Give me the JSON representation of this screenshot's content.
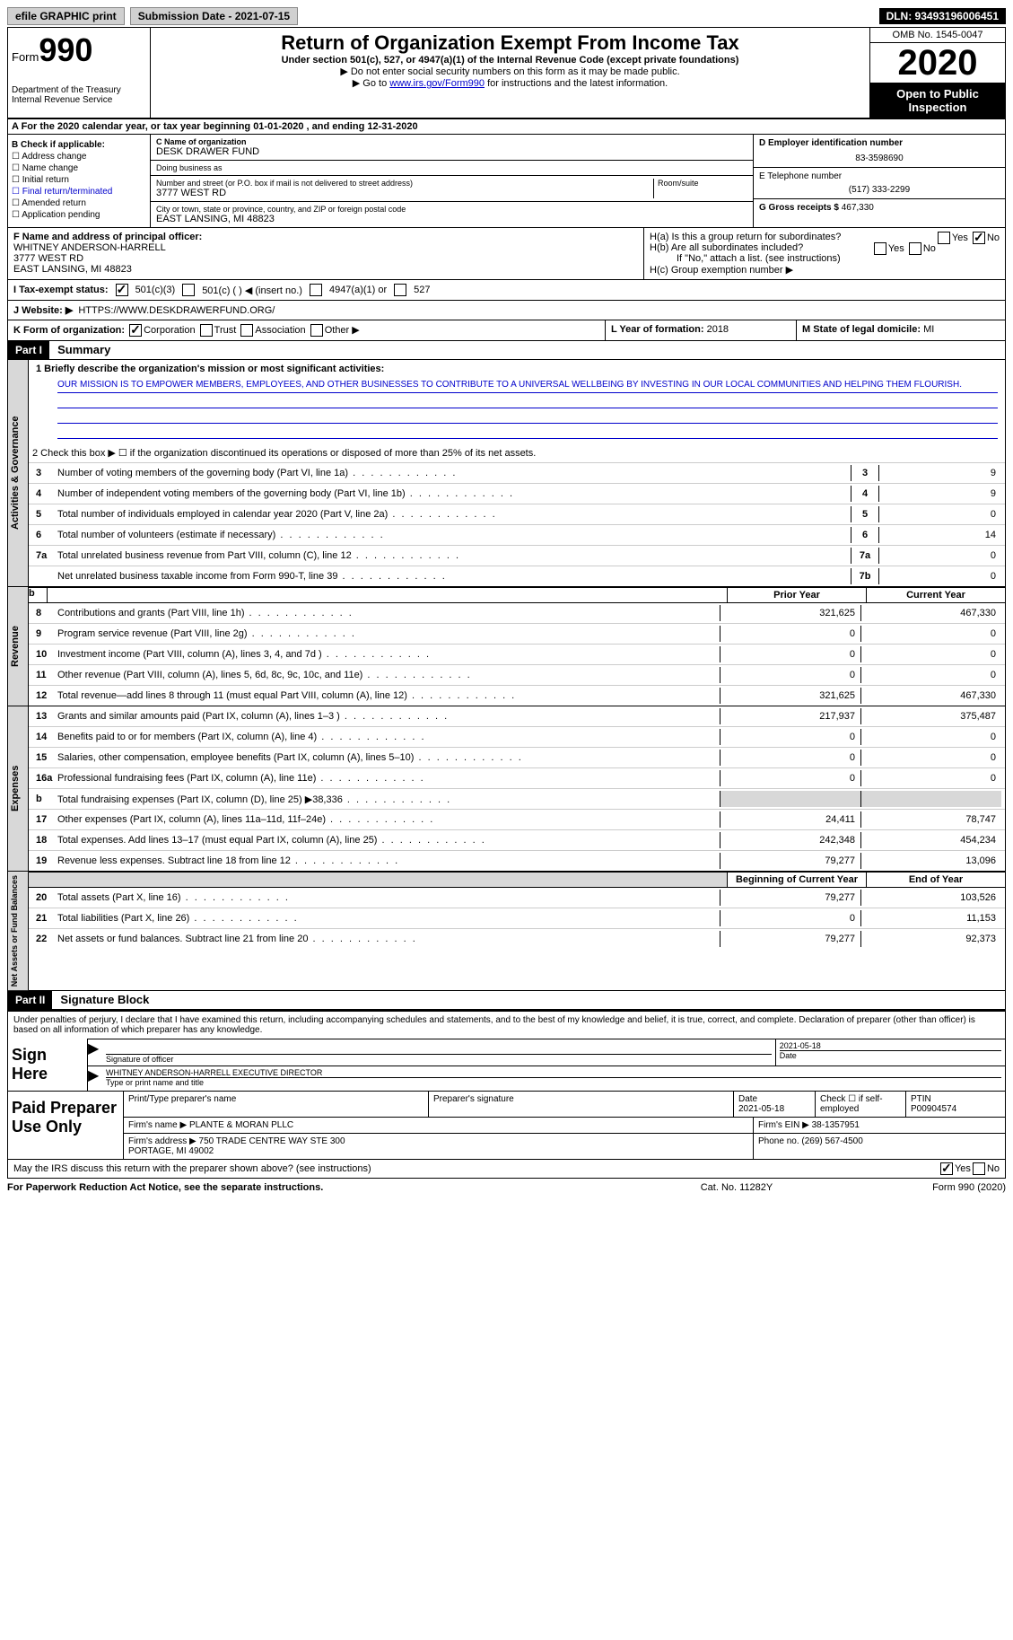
{
  "topbar": {
    "efile": "efile GRAPHIC print",
    "submission": "Submission Date - 2021-07-15",
    "dln": "DLN: 93493196006451"
  },
  "header": {
    "form_prefix": "Form",
    "form_number": "990",
    "dept": "Department of the Treasury\nInternal Revenue Service",
    "title": "Return of Organization Exempt From Income Tax",
    "subtitle": "Under section 501(c), 527, or 4947(a)(1) of the Internal Revenue Code (except private foundations)",
    "note1": "▶ Do not enter social security numbers on this form as it may be made public.",
    "note2_pre": "▶ Go to ",
    "note2_link": "www.irs.gov/Form990",
    "note2_post": " for instructions and the latest information.",
    "omb": "OMB No. 1545-0047",
    "year": "2020",
    "inspect": "Open to Public Inspection"
  },
  "calyear": "A For the 2020 calendar year, or tax year beginning 01-01-2020     , and ending 12-31-2020",
  "boxB": {
    "label": "B Check if applicable:",
    "items": [
      "Address change",
      "Name change",
      "Initial return",
      "Final return/terminated",
      "Amended return",
      "Application pending"
    ]
  },
  "boxC": {
    "name_label": "C Name of organization",
    "name": "DESK DRAWER FUND",
    "dba_label": "Doing business as",
    "dba": "",
    "addr_label": "Number and street (or P.O. box if mail is not delivered to street address)",
    "room_label": "Room/suite",
    "addr": "3777 WEST RD",
    "city_label": "City or town, state or province, country, and ZIP or foreign postal code",
    "city": "EAST LANSING, MI  48823"
  },
  "boxD": {
    "label": "D Employer identification number",
    "ein": "83-3598690"
  },
  "boxE": {
    "label": "E Telephone number",
    "phone": "(517) 333-2299"
  },
  "boxG": {
    "label": "G Gross receipts $",
    "val": "467,330"
  },
  "boxF": {
    "label": "F Name and address of principal officer:",
    "name": "WHITNEY ANDERSON-HARRELL",
    "addr": "3777 WEST RD\nEAST LANSING, MI  48823"
  },
  "boxH": {
    "a": "H(a)  Is this a group return for subordinates?",
    "b": "H(b)  Are all subordinates included?",
    "bnote": "If \"No,\" attach a list. (see instructions)",
    "c": "H(c)  Group exemption number ▶"
  },
  "boxI": {
    "label": "I     Tax-exempt status:",
    "opts": [
      "501(c)(3)",
      "501(c) (   ) ◀ (insert no.)",
      "4947(a)(1) or",
      "527"
    ]
  },
  "boxJ": {
    "label": "J    Website: ▶",
    "url": "HTTPS://WWW.DESKDRAWERFUND.ORG/"
  },
  "boxK": {
    "label": "K Form of organization:",
    "opts": [
      "Corporation",
      "Trust",
      "Association",
      "Other ▶"
    ]
  },
  "boxL": {
    "label": "L Year of formation:",
    "val": "2018"
  },
  "boxM": {
    "label": "M State of legal domicile:",
    "val": "MI"
  },
  "part1": {
    "hdr": "Part I",
    "title": "Summary"
  },
  "mission": {
    "label": "1  Briefly describe the organization's mission or most significant activities:",
    "text": "OUR MISSION IS TO EMPOWER MEMBERS, EMPLOYEES, AND OTHER BUSINESSES TO CONTRIBUTE TO A UNIVERSAL WELLBEING BY INVESTING IN OUR LOCAL COMMUNITIES AND HELPING THEM FLOURISH."
  },
  "line2": "2    Check this box ▶ ☐  if the organization discontinued its operations or disposed of more than 25% of its net assets.",
  "gov_lines": [
    {
      "n": "3",
      "d": "Number of voting members of the governing body (Part VI, line 1a)",
      "box": "3",
      "v": "9"
    },
    {
      "n": "4",
      "d": "Number of independent voting members of the governing body (Part VI, line 1b)",
      "box": "4",
      "v": "9"
    },
    {
      "n": "5",
      "d": "Total number of individuals employed in calendar year 2020 (Part V, line 2a)",
      "box": "5",
      "v": "0"
    },
    {
      "n": "6",
      "d": "Total number of volunteers (estimate if necessary)",
      "box": "6",
      "v": "14"
    },
    {
      "n": "7a",
      "d": "Total unrelated business revenue from Part VIII, column (C), line 12",
      "box": "7a",
      "v": "0"
    },
    {
      "n": "",
      "d": "Net unrelated business taxable income from Form 990-T, line 39",
      "box": "7b",
      "v": "0"
    }
  ],
  "col_heads": {
    "prior": "Prior Year",
    "current": "Current Year"
  },
  "rev_lines": [
    {
      "n": "8",
      "d": "Contributions and grants (Part VIII, line 1h)",
      "p": "321,625",
      "c": "467,330"
    },
    {
      "n": "9",
      "d": "Program service revenue (Part VIII, line 2g)",
      "p": "0",
      "c": "0"
    },
    {
      "n": "10",
      "d": "Investment income (Part VIII, column (A), lines 3, 4, and 7d )",
      "p": "0",
      "c": "0"
    },
    {
      "n": "11",
      "d": "Other revenue (Part VIII, column (A), lines 5, 6d, 8c, 9c, 10c, and 11e)",
      "p": "0",
      "c": "0"
    },
    {
      "n": "12",
      "d": "Total revenue—add lines 8 through 11 (must equal Part VIII, column (A), line 12)",
      "p": "321,625",
      "c": "467,330"
    }
  ],
  "exp_lines": [
    {
      "n": "13",
      "d": "Grants and similar amounts paid (Part IX, column (A), lines 1–3 )",
      "p": "217,937",
      "c": "375,487"
    },
    {
      "n": "14",
      "d": "Benefits paid to or for members (Part IX, column (A), line 4)",
      "p": "0",
      "c": "0"
    },
    {
      "n": "15",
      "d": "Salaries, other compensation, employee benefits (Part IX, column (A), lines 5–10)",
      "p": "0",
      "c": "0"
    },
    {
      "n": "16a",
      "d": "Professional fundraising fees (Part IX, column (A), line 11e)",
      "p": "0",
      "c": "0"
    },
    {
      "n": "b",
      "d": "Total fundraising expenses (Part IX, column (D), line 25)  ▶38,336",
      "p": "",
      "c": "",
      "shaded": true
    },
    {
      "n": "17",
      "d": "Other expenses (Part IX, column (A), lines 11a–11d, 11f–24e)",
      "p": "24,411",
      "c": "78,747"
    },
    {
      "n": "18",
      "d": "Total expenses. Add lines 13–17 (must equal Part IX, column (A), line 25)",
      "p": "242,348",
      "c": "454,234"
    },
    {
      "n": "19",
      "d": "Revenue less expenses. Subtract line 18 from line 12",
      "p": "79,277",
      "c": "13,096"
    }
  ],
  "net_heads": {
    "beg": "Beginning of Current Year",
    "end": "End of Year"
  },
  "net_lines": [
    {
      "n": "20",
      "d": "Total assets (Part X, line 16)",
      "p": "79,277",
      "c": "103,526"
    },
    {
      "n": "21",
      "d": "Total liabilities (Part X, line 26)",
      "p": "0",
      "c": "11,153"
    },
    {
      "n": "22",
      "d": "Net assets or fund balances. Subtract line 21 from line 20",
      "p": "79,277",
      "c": "92,373"
    }
  ],
  "sections": {
    "gov": "Activities & Governance",
    "rev": "Revenue",
    "exp": "Expenses",
    "net": "Net Assets or Fund Balances"
  },
  "part2": {
    "hdr": "Part II",
    "title": "Signature Block"
  },
  "sig": {
    "declare": "Under penalties of perjury, I declare that I have examined this return, including accompanying schedules and statements, and to the best of my knowledge and belief, it is true, correct, and complete. Declaration of preparer (other than officer) is based on all information of which preparer has any knowledge.",
    "sign_here": "Sign Here",
    "officer_sig": "Signature of officer",
    "date": "Date",
    "date_val": "2021-05-18",
    "name_title_label": "Type or print name and title",
    "name_title": "WHITNEY ANDERSON-HARRELL  EXECUTIVE DIRECTOR"
  },
  "prep": {
    "label": "Paid Preparer Use Only",
    "h1": "Print/Type preparer's name",
    "h2": "Preparer's signature",
    "h3": "Date",
    "h3v": "2021-05-18",
    "h4": "Check ☐ if self-employed",
    "h5": "PTIN",
    "h5v": "P00904574",
    "firm_name_l": "Firm's name     ▶",
    "firm_name": "PLANTE & MORAN PLLC",
    "firm_ein_l": "Firm's EIN ▶",
    "firm_ein": "38-1357951",
    "firm_addr_l": "Firm's address ▶",
    "firm_addr": "750 TRADE CENTRE WAY STE 300\nPORTAGE, MI  49002",
    "phone_l": "Phone no.",
    "phone": "(269) 567-4500"
  },
  "discuss": "May the IRS discuss this return with the preparer shown above? (see instructions)",
  "footer": {
    "l": "For Paperwork Reduction Act Notice, see the separate instructions.",
    "m": "Cat. No. 11282Y",
    "r": "Form 990 (2020)"
  }
}
